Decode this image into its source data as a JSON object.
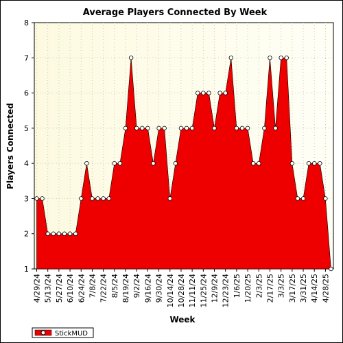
{
  "chart_data": {
    "type": "area",
    "title": "Average Players Connected By Week",
    "xlabel": "Week",
    "ylabel": "Players Connected",
    "ylim": [
      1,
      8
    ],
    "yticks": [
      1,
      2,
      3,
      4,
      5,
      6,
      7,
      8
    ],
    "grid": true,
    "legend_position": "bottom-left",
    "x": [
      "4/29/24",
      "5/6/24",
      "5/13/24",
      "5/20/24",
      "5/27/24",
      "6/3/24",
      "6/10/24",
      "6/17/24",
      "6/24/24",
      "7/1/24",
      "7/8/24",
      "7/15/24",
      "7/22/24",
      "7/29/24",
      "8/5/24",
      "8/12/24",
      "8/19/24",
      "8/26/24",
      "9/2/24",
      "9/9/24",
      "9/16/24",
      "9/23/24",
      "9/30/24",
      "10/7/24",
      "10/14/24",
      "10/21/24",
      "10/28/24",
      "11/4/24",
      "11/11/24",
      "11/18/24",
      "11/25/24",
      "12/2/24",
      "12/9/24",
      "12/16/24",
      "12/23/24",
      "12/30/24",
      "1/6/25",
      "1/13/25",
      "1/20/25",
      "1/27/25",
      "2/3/25",
      "2/10/25",
      "2/17/25",
      "2/24/25",
      "3/3/25",
      "3/10/25",
      "3/17/25",
      "3/24/25",
      "3/31/25",
      "4/7/25",
      "4/14/25",
      "4/21/25",
      "4/28/25",
      "5/5/25"
    ],
    "tick_labels": [
      "4/29/24",
      "5/13/24",
      "5/27/24",
      "6/10/24",
      "6/24/24",
      "7/8/24",
      "7/22/24",
      "8/5/24",
      "8/19/24",
      "9/2/24",
      "9/16/24",
      "9/30/24",
      "10/14/24",
      "10/28/24",
      "11/11/24",
      "11/25/24",
      "12/9/24",
      "12/23/24",
      "1/6/25",
      "1/20/25",
      "2/3/25",
      "2/17/25",
      "3/3/25",
      "3/17/25",
      "3/31/25",
      "4/14/25",
      "4/28/25"
    ],
    "series": [
      {
        "name": "StickMUD",
        "color": "#ee0000",
        "values": [
          3,
          3,
          2,
          2,
          2,
          2,
          2,
          2,
          3,
          4,
          3,
          3,
          3,
          3,
          4,
          4,
          5,
          7,
          5,
          5,
          5,
          4,
          5,
          5,
          3,
          4,
          5,
          5,
          5,
          6,
          6,
          6,
          5,
          6,
          6,
          7,
          5,
          5,
          5,
          4,
          4,
          5,
          7,
          5,
          7,
          7,
          4,
          3,
          3,
          4,
          4,
          4,
          3,
          1
        ]
      }
    ]
  }
}
